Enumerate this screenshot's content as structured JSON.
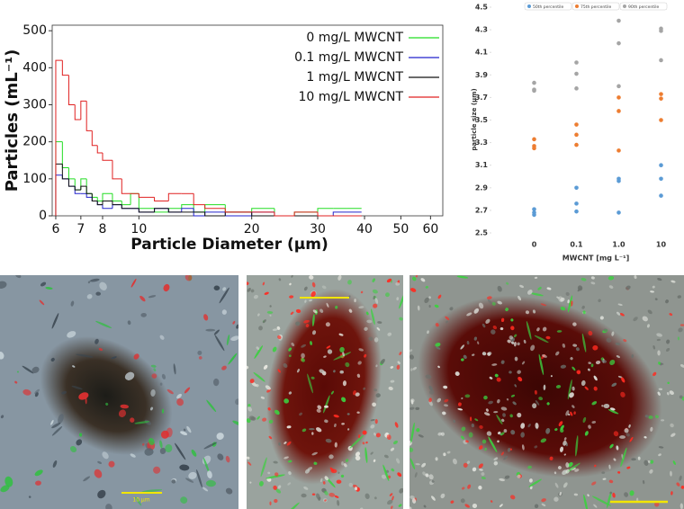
{
  "chart_data": [
    {
      "type": "step",
      "x_label": "Particle Diameter (µm)",
      "y_label": "Particles (mL⁻¹)",
      "log_x": true,
      "x": [
        6,
        6.25,
        6.5,
        6.75,
        7,
        7.25,
        7.5,
        7.75,
        8,
        8.5,
        9,
        9.5,
        10,
        11,
        12,
        13,
        14,
        15,
        17,
        20,
        23,
        26,
        30,
        33,
        36
      ],
      "xlim": [
        5.87,
        64.7
      ],
      "xticks": [
        6,
        7,
        8,
        10,
        20,
        30,
        40,
        50,
        60
      ],
      "ylim": [
        0,
        515
      ],
      "yticks": [
        0,
        100,
        200,
        300,
        400,
        500
      ],
      "legend": "upper right",
      "series": [
        {
          "name": "0 mg/L MWCNT",
          "color": "#22dd22",
          "values": [
            200,
            130,
            100,
            70,
            100,
            60,
            50,
            40,
            60,
            40,
            30,
            60,
            20,
            10,
            20,
            30,
            10,
            30,
            10,
            20,
            0,
            10,
            20,
            20,
            20
          ]
        },
        {
          "name": "0.1 mg/L MWCNT",
          "color": "#2222cc",
          "values": [
            110,
            100,
            80,
            60,
            60,
            50,
            40,
            30,
            20,
            30,
            20,
            20,
            10,
            20,
            10,
            20,
            0,
            10,
            0,
            10,
            0,
            0,
            0,
            10,
            10
          ]
        },
        {
          "name": "1 mg/L MWCNT",
          "color": "#111111",
          "values": [
            140,
            100,
            80,
            70,
            80,
            60,
            40,
            30,
            40,
            30,
            20,
            20,
            10,
            20,
            10,
            10,
            10,
            0,
            10,
            0,
            0,
            0,
            0,
            0,
            0
          ]
        },
        {
          "name": "10 mg/L MWCNT",
          "color": "#e02020",
          "values": [
            420,
            380,
            300,
            260,
            310,
            230,
            190,
            170,
            150,
            100,
            60,
            60,
            50,
            40,
            60,
            60,
            30,
            20,
            10,
            10,
            0,
            10,
            0,
            0,
            0
          ]
        }
      ]
    },
    {
      "type": "strip",
      "x_label": "MWCNT [mg L⁻¹]",
      "y_label": "particle size (µm)",
      "categories": [
        "0",
        "0.1",
        "1.0",
        "10"
      ],
      "ylim": [
        2.5,
        4.5
      ],
      "yticks": [
        2.5,
        2.7,
        2.9,
        3.1,
        3.3,
        3.5,
        3.7,
        3.9,
        4.1,
        4.3,
        4.5
      ],
      "legend": "top",
      "series": [
        {
          "name": "50th percentile",
          "color": "#5b9bd5",
          "values": [
            [
              2.71,
              2.68,
              2.66
            ],
            [
              2.9,
              2.76,
              2.69
            ],
            [
              2.98,
              2.96,
              2.68
            ],
            [
              3.1,
              2.98,
              2.83
            ]
          ]
        },
        {
          "name": "75th percentile",
          "color": "#ed7d31",
          "values": [
            [
              3.33,
              3.27,
              3.25
            ],
            [
              3.46,
              3.37,
              3.28
            ],
            [
              3.7,
              3.58,
              3.23
            ],
            [
              3.73,
              3.69,
              3.5
            ]
          ]
        },
        {
          "name": "90th percentile",
          "color": "#a5a5a5",
          "values": [
            [
              3.83,
              3.77,
              3.76
            ],
            [
              4.01,
              3.91,
              3.78
            ],
            [
              4.38,
              4.18,
              3.8
            ],
            [
              4.31,
              4.29,
              4.03
            ]
          ]
        }
      ]
    }
  ],
  "images": [
    {
      "scale_label": "10 µm"
    }
  ]
}
